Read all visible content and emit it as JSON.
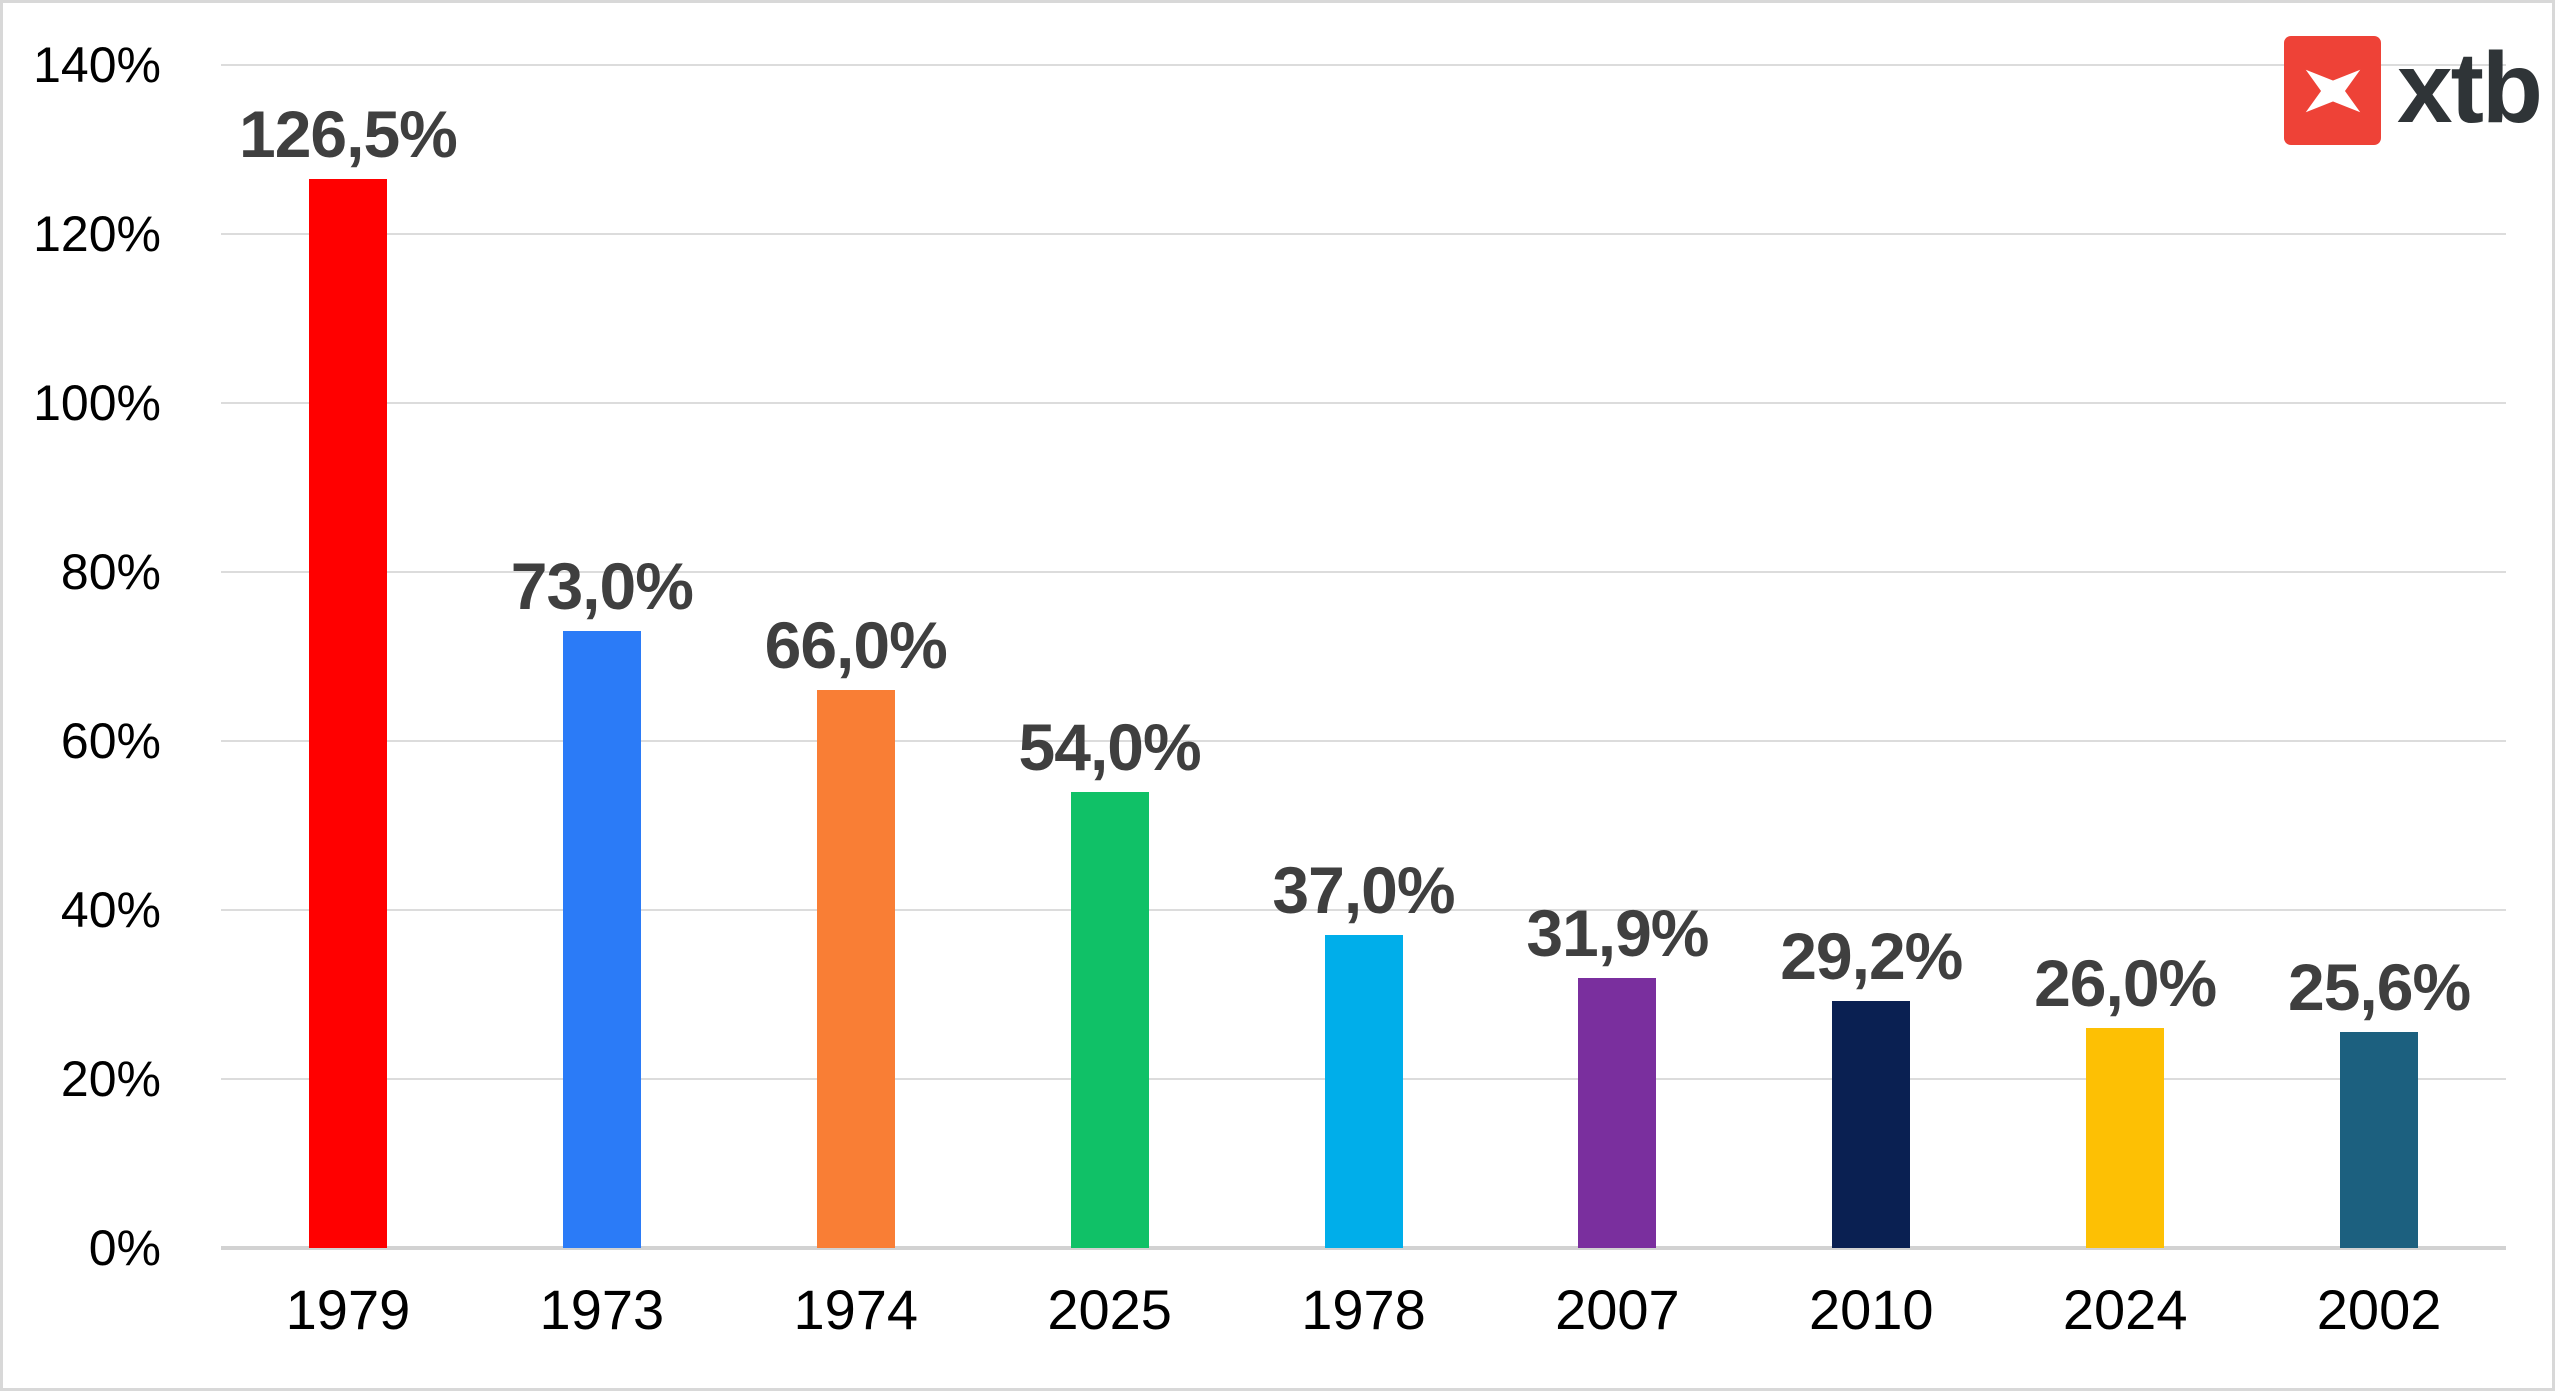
{
  "brand": {
    "logo_text": "xtb",
    "logo_background": "#EE4237",
    "logo_text_color": "#2F3437"
  },
  "chart_data": {
    "type": "bar",
    "title": "",
    "xlabel": "",
    "ylabel": "",
    "categories": [
      "1979",
      "1973",
      "1974",
      "2025",
      "1978",
      "2007",
      "2010",
      "2024",
      "2002"
    ],
    "values": [
      126.5,
      73.0,
      66.0,
      54.0,
      37.0,
      31.9,
      29.2,
      26.0,
      25.6
    ],
    "value_labels": [
      "126,5%",
      "73,0%",
      "66,0%",
      "54,0%",
      "37,0%",
      "31,9%",
      "29,2%",
      "26,0%",
      "25,6%"
    ],
    "bar_colors": [
      "#FF0000",
      "#2B7BF7",
      "#F97E35",
      "#10C167",
      "#00AEEA",
      "#7A2F9E",
      "#0A2052",
      "#FDC004",
      "#1C607F"
    ],
    "ylim": [
      0,
      140
    ],
    "y_ticks": [
      {
        "value": 140,
        "label": "140%"
      },
      {
        "value": 120,
        "label": "120%"
      },
      {
        "value": 100,
        "label": "100%"
      },
      {
        "value": 80,
        "label": "80%"
      },
      {
        "value": 60,
        "label": "60%"
      },
      {
        "value": 40,
        "label": "40%"
      },
      {
        "value": 20,
        "label": "20%"
      },
      {
        "value": 0,
        "label": "0%"
      }
    ],
    "grid": true,
    "legend": false
  },
  "colors": {
    "value_label": "#3F3F3F",
    "axis_text": "#000000",
    "gridline": "#DCDCDC",
    "baseline": "#D2D2D2",
    "background": "#FFFFFF",
    "frame_border": "#D8D8D8"
  }
}
